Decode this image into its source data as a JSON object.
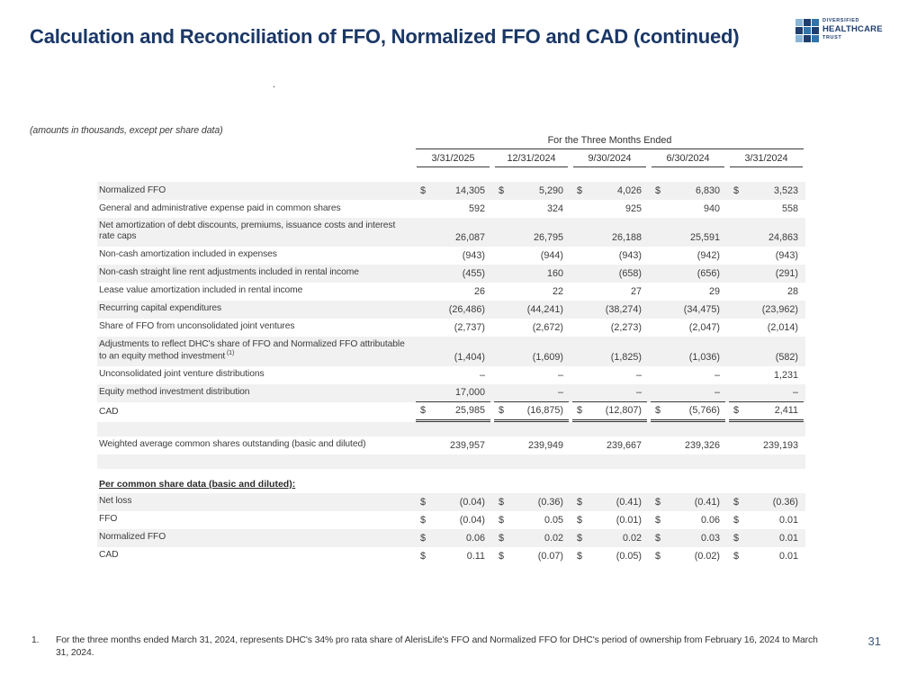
{
  "header": {
    "title": "Calculation and Reconciliation of FFO, Normalized FFO and CAD (continued)",
    "logo": {
      "line1": "DIVERSIFIED",
      "line2": "HEALTHCARE",
      "line3": "TRUST",
      "navy": "#1d3e6f",
      "squares": [
        "#8ab6d6",
        "#1d3e6f",
        "#2f74ab",
        "#1d3e6f",
        "#2f74ab",
        "#1d3e6f",
        "#8ab6d6",
        "#1d3e6f",
        "#2f74ab"
      ]
    }
  },
  "stray_period": ".",
  "note": "(amounts in thousands, except per share data)",
  "table": {
    "group_header": "For the Three Months Ended",
    "columns": [
      "3/31/2025",
      "12/31/2024",
      "9/30/2024",
      "6/30/2024",
      "3/31/2024"
    ],
    "stripe_color": "#f1f1f2",
    "rows": [
      {
        "type": "data",
        "shaded": true,
        "dollar": true,
        "label": "Normalized FFO",
        "values": [
          "14,305",
          "5,290",
          "4,026",
          "6,830",
          "3,523"
        ]
      },
      {
        "type": "data",
        "shaded": false,
        "dollar": false,
        "label": "General and administrative expense paid in common shares",
        "values": [
          "592",
          "324",
          "925",
          "940",
          "558"
        ]
      },
      {
        "type": "data",
        "shaded": true,
        "dollar": false,
        "label": "Net amortization of debt discounts, premiums, issuance costs and interest rate caps",
        "values": [
          "26,087",
          "26,795",
          "26,188",
          "25,591",
          "24,863"
        ]
      },
      {
        "type": "data",
        "shaded": false,
        "dollar": false,
        "label": "Non-cash amortization included in expenses",
        "values": [
          "(943)",
          "(944)",
          "(943)",
          "(942)",
          "(943)"
        ]
      },
      {
        "type": "data",
        "shaded": true,
        "dollar": false,
        "label": "Non-cash straight line rent adjustments included in rental income",
        "values": [
          "(455)",
          "160",
          "(658)",
          "(656)",
          "(291)"
        ]
      },
      {
        "type": "data",
        "shaded": false,
        "dollar": false,
        "label": "Lease value amortization included in rental income",
        "values": [
          "26",
          "22",
          "27",
          "29",
          "28"
        ]
      },
      {
        "type": "data",
        "shaded": true,
        "dollar": false,
        "label": "Recurring capital expenditures",
        "values": [
          "(26,486)",
          "(44,241)",
          "(38,274)",
          "(34,475)",
          "(23,962)"
        ]
      },
      {
        "type": "data",
        "shaded": false,
        "dollar": false,
        "label": "Share of FFO from unconsolidated joint ventures",
        "values": [
          "(2,737)",
          "(2,672)",
          "(2,273)",
          "(2,047)",
          "(2,014)"
        ]
      },
      {
        "type": "data",
        "shaded": true,
        "dollar": false,
        "label": "Adjustments to reflect DHC's share of FFO and Normalized FFO attributable to an equity method investment",
        "sup": "(1)",
        "values": [
          "(1,404)",
          "(1,609)",
          "(1,825)",
          "(1,036)",
          "(582)"
        ]
      },
      {
        "type": "data",
        "shaded": false,
        "dollar": false,
        "label": "Unconsolidated joint venture distributions",
        "values": [
          "–",
          "–",
          "–",
          "–",
          "1,231"
        ]
      },
      {
        "type": "data",
        "shaded": true,
        "dollar": false,
        "label": "Equity method investment distribution",
        "values": [
          "17,000",
          "–",
          "–",
          "–",
          "–"
        ],
        "rule": "single"
      },
      {
        "type": "data",
        "shaded": false,
        "dollar": true,
        "label": "CAD",
        "values": [
          "25,985",
          "(16,875)",
          "(12,807)",
          "(5,766)",
          "2,411"
        ],
        "rule": "double"
      },
      {
        "type": "spacer",
        "shaded": true
      },
      {
        "type": "data",
        "shaded": false,
        "dollar": false,
        "label": "Weighted average common shares outstanding (basic and diluted)",
        "values": [
          "239,957",
          "239,949",
          "239,667",
          "239,326",
          "239,193"
        ]
      },
      {
        "type": "spacer",
        "shaded": true
      },
      {
        "type": "gap"
      },
      {
        "type": "heading",
        "label": "Per common share data (basic and diluted):"
      },
      {
        "type": "data",
        "shaded": true,
        "dollar": true,
        "label": "Net loss",
        "values": [
          "(0.04)",
          "(0.36)",
          "(0.41)",
          "(0.41)",
          "(0.36)"
        ]
      },
      {
        "type": "data",
        "shaded": false,
        "dollar": true,
        "label": "FFO",
        "values": [
          "(0.04)",
          "0.05",
          "(0.01)",
          "0.06",
          "0.01"
        ]
      },
      {
        "type": "data",
        "shaded": true,
        "dollar": true,
        "label": "Normalized FFO",
        "values": [
          "0.06",
          "0.02",
          "0.02",
          "0.03",
          "0.01"
        ]
      },
      {
        "type": "data",
        "shaded": false,
        "dollar": true,
        "label": "CAD",
        "values": [
          "0.11",
          "(0.07)",
          "(0.05)",
          "(0.02)",
          "0.01"
        ]
      }
    ]
  },
  "footnote": {
    "number": "1.",
    "text": "For the three months ended March 31, 2024, represents DHC's 34% pro rata share of AlerisLife's FFO and Normalized FFO for DHC's period of ownership from February 16, 2024 to March 31, 2024."
  },
  "page_number": "31"
}
